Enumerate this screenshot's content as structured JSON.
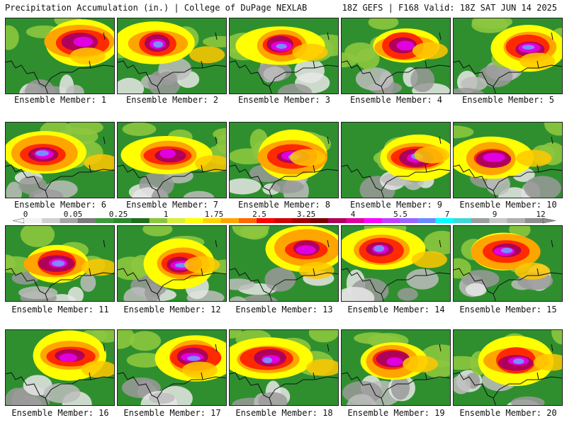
{
  "header": {
    "title": "Precipitation Accumulation (in.) | College of DuPage NEXLAB",
    "run_info": "18Z GEFS | F168 Valid: 18Z SAT JUN 14 2025"
  },
  "panels": [
    {
      "label": "Ensemble Member: 1"
    },
    {
      "label": "Ensemble Member: 2"
    },
    {
      "label": "Ensemble Member: 3"
    },
    {
      "label": "Ensemble Member: 4"
    },
    {
      "label": "Ensemble Member: 5"
    },
    {
      "label": "Ensemble Member: 6"
    },
    {
      "label": "Ensemble Member: 7"
    },
    {
      "label": "Ensemble Member: 8"
    },
    {
      "label": "Ensemble Member: 9"
    },
    {
      "label": "Ensemble Member: 10"
    },
    {
      "label": "Ensemble Member: 11"
    },
    {
      "label": "Ensemble Member: 12"
    },
    {
      "label": "Ensemble Member: 13"
    },
    {
      "label": "Ensemble Member: 14"
    },
    {
      "label": "Ensemble Member: 15"
    },
    {
      "label": "Ensemble Member: 16"
    },
    {
      "label": "Ensemble Member: 17"
    },
    {
      "label": "Ensemble Member: 18"
    },
    {
      "label": "Ensemble Member: 19"
    },
    {
      "label": "Ensemble Member: 20"
    }
  ],
  "colorbar": {
    "tick_labels": [
      "0",
      "0.05",
      "0.25",
      "1",
      "1.75",
      "2.5",
      "3.25",
      "4",
      "5.5",
      "7",
      "9",
      "12"
    ],
    "colors": [
      "#f2f2f2",
      "#d0d0d0",
      "#a6a6a6",
      "#7c7c7c",
      "#3e9a3e",
      "#2d8a2d",
      "#1f6f1f",
      "#8cc63e",
      "#d9ef3a",
      "#ffff00",
      "#ffd400",
      "#ffa500",
      "#ff6a00",
      "#ff0000",
      "#d00000",
      "#a00000",
      "#7a0000",
      "#b0005a",
      "#e000a0",
      "#ff00ff",
      "#c040ff",
      "#9a66ff",
      "#6a8cff",
      "#00ffff",
      "#40d8d8",
      "#9aa0a0",
      "#c8c8c8",
      "#b0b0b0",
      "#909090"
    ]
  }
}
